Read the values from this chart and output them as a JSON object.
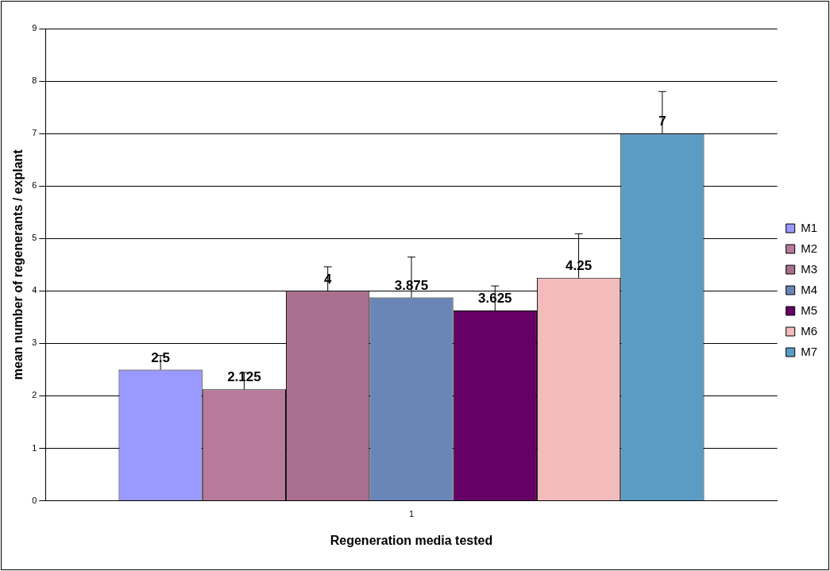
{
  "chart_data": {
    "type": "bar",
    "xlabel": "Regeneration media tested",
    "ylabel": "mean number of regenerants / explant",
    "categories": [
      "1"
    ],
    "series": [
      {
        "name": "M1",
        "color": "#9999ff",
        "values": [
          2.5
        ],
        "errors": [
          0.27
        ]
      },
      {
        "name": "M2",
        "color": "#b87a9a",
        "values": [
          2.125
        ],
        "errors": [
          0.32
        ]
      },
      {
        "name": "M3",
        "color": "#a8708e",
        "values": [
          4
        ],
        "errors": [
          0.46
        ]
      },
      {
        "name": "M4",
        "color": "#6a86b8",
        "values": [
          3.875
        ],
        "errors": [
          0.77
        ]
      },
      {
        "name": "M5",
        "color": "#660066",
        "values": [
          3.625
        ],
        "errors": [
          0.47
        ]
      },
      {
        "name": "M6",
        "color": "#f2bcbc",
        "values": [
          4.25
        ],
        "errors": [
          0.84
        ]
      },
      {
        "name": "M7",
        "color": "#5a9cc4",
        "values": [
          7
        ],
        "errors": [
          0.8
        ]
      }
    ],
    "ylim": [
      0,
      9
    ],
    "yticks": [
      0,
      1,
      2,
      3,
      4,
      5,
      6,
      7,
      8,
      9
    ],
    "grid": "y",
    "legend": "right",
    "data_labels": true
  }
}
